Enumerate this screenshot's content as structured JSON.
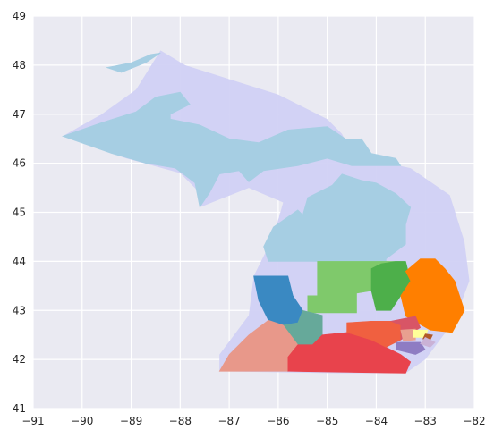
{
  "chart_data": {
    "type": "map",
    "background_color": "#EAEAF2",
    "grid": true,
    "grid_color": "#FFFFFF",
    "xlim": [
      -91,
      -82
    ],
    "ylim": [
      41,
      49
    ],
    "x_ticks": [
      -91,
      -90,
      -89,
      -88,
      -87,
      -86,
      -85,
      -84,
      -83,
      -82
    ],
    "y_ticks": [
      41,
      42,
      43,
      44,
      45,
      46,
      47,
      48,
      49
    ],
    "x_tick_labels": [
      "−91",
      "−90",
      "−89",
      "−88",
      "−87",
      "−86",
      "−85",
      "−84",
      "−83",
      "−82"
    ],
    "y_tick_labels": [
      "41",
      "42",
      "43",
      "44",
      "45",
      "46",
      "47",
      "48",
      "49"
    ],
    "state_outline": {
      "color": "#D1D1F4",
      "polygon": [
        [
          -88.4,
          48.3
        ],
        [
          -87.9,
          48.0
        ],
        [
          -86.0,
          47.4
        ],
        [
          -85.0,
          46.9
        ],
        [
          -84.7,
          46.6
        ],
        [
          -84.6,
          46.4
        ],
        [
          -84.0,
          46.05
        ],
        [
          -83.3,
          45.9
        ],
        [
          -82.5,
          45.35
        ],
        [
          -82.2,
          44.4
        ],
        [
          -82.1,
          43.6
        ],
        [
          -82.4,
          42.8
        ],
        [
          -83.0,
          42.0
        ],
        [
          -83.4,
          41.72
        ],
        [
          -84.8,
          41.72
        ],
        [
          -87.2,
          41.76
        ],
        [
          -87.2,
          42.1
        ],
        [
          -86.6,
          42.9
        ],
        [
          -86.5,
          43.7
        ],
        [
          -86.1,
          44.5
        ],
        [
          -85.9,
          45.2
        ],
        [
          -86.6,
          45.5
        ],
        [
          -87.6,
          45.1
        ],
        [
          -87.6,
          45.4
        ],
        [
          -88.0,
          45.8
        ],
        [
          -89.1,
          46.1
        ],
        [
          -90.4,
          46.55
        ],
        [
          -89.6,
          47.0
        ],
        [
          -88.9,
          47.5
        ],
        [
          -88.4,
          48.3
        ]
      ]
    },
    "regions": [
      {
        "color": "#A6CEE3",
        "polygon": [
          [
            -90.4,
            46.55
          ],
          [
            -89.6,
            46.83
          ],
          [
            -88.9,
            47.05
          ],
          [
            -88.5,
            47.35
          ],
          [
            -88.0,
            47.45
          ],
          [
            -87.8,
            47.2
          ],
          [
            -88.2,
            47.0
          ],
          [
            -88.2,
            46.9
          ],
          [
            -87.6,
            46.78
          ],
          [
            -87.0,
            46.5
          ],
          [
            -86.4,
            46.42
          ],
          [
            -85.8,
            46.68
          ],
          [
            -85.0,
            46.75
          ],
          [
            -84.6,
            46.48
          ],
          [
            -84.3,
            46.5
          ],
          [
            -84.1,
            46.2
          ],
          [
            -83.6,
            46.1
          ],
          [
            -83.5,
            45.95
          ],
          [
            -83.9,
            45.95
          ],
          [
            -84.5,
            45.95
          ],
          [
            -85.0,
            46.1
          ],
          [
            -85.6,
            45.95
          ],
          [
            -86.3,
            45.85
          ],
          [
            -86.6,
            45.62
          ],
          [
            -86.8,
            45.85
          ],
          [
            -87.2,
            45.78
          ],
          [
            -87.4,
            45.4
          ],
          [
            -87.6,
            45.1
          ],
          [
            -87.7,
            45.6
          ],
          [
            -87.9,
            45.75
          ],
          [
            -88.1,
            45.9
          ],
          [
            -88.7,
            46.0
          ],
          [
            -89.4,
            46.2
          ],
          [
            -90.4,
            46.55
          ]
        ]
      },
      {
        "color": "#A6CEE3",
        "polygon": [
          [
            -89.5,
            47.95
          ],
          [
            -89.2,
            47.85
          ],
          [
            -88.7,
            48.05
          ],
          [
            -88.4,
            48.25
          ],
          [
            -88.6,
            48.22
          ],
          [
            -89.0,
            48.05
          ],
          [
            -89.5,
            47.95
          ]
        ]
      },
      {
        "color": "#A6CEE3",
        "polygon": [
          [
            -84.7,
            45.78
          ],
          [
            -84.3,
            45.65
          ],
          [
            -84.0,
            45.6
          ],
          [
            -83.6,
            45.38
          ],
          [
            -83.3,
            45.1
          ],
          [
            -83.4,
            44.75
          ],
          [
            -83.4,
            44.35
          ],
          [
            -83.8,
            44.05
          ],
          [
            -83.8,
            43.95
          ],
          [
            -84.1,
            44.0
          ],
          [
            -86.2,
            44.0
          ],
          [
            -86.3,
            44.3
          ],
          [
            -86.1,
            44.7
          ],
          [
            -85.6,
            45.05
          ],
          [
            -85.5,
            44.95
          ],
          [
            -85.4,
            45.3
          ],
          [
            -84.9,
            45.55
          ],
          [
            -84.7,
            45.78
          ]
        ]
      },
      {
        "color": "#7FC96B",
        "polygon": [
          [
            -85.2,
            44.0
          ],
          [
            -83.6,
            44.0
          ],
          [
            -83.9,
            43.95
          ],
          [
            -84.1,
            43.85
          ],
          [
            -84.1,
            43.4
          ],
          [
            -84.4,
            43.35
          ],
          [
            -84.4,
            42.95
          ],
          [
            -85.4,
            42.95
          ],
          [
            -85.4,
            43.3
          ],
          [
            -85.2,
            43.3
          ],
          [
            -85.2,
            44.0
          ]
        ]
      },
      {
        "color": "#4DAF4A",
        "polygon": [
          [
            -83.6,
            44.0
          ],
          [
            -83.4,
            44.0
          ],
          [
            -83.3,
            43.6
          ],
          [
            -83.5,
            43.3
          ],
          [
            -83.7,
            43.0
          ],
          [
            -84.0,
            43.0
          ],
          [
            -84.1,
            43.4
          ],
          [
            -84.1,
            43.85
          ],
          [
            -83.9,
            43.95
          ],
          [
            -83.6,
            44.0
          ]
        ]
      },
      {
        "color": "#FF7F00",
        "polygon": [
          [
            -82.6,
            43.85
          ],
          [
            -82.4,
            43.6
          ],
          [
            -82.2,
            43.0
          ],
          [
            -82.45,
            42.55
          ],
          [
            -82.9,
            42.6
          ],
          [
            -83.4,
            42.88
          ],
          [
            -83.5,
            43.3
          ],
          [
            -83.3,
            43.6
          ],
          [
            -83.4,
            43.8
          ],
          [
            -83.1,
            44.05
          ],
          [
            -82.8,
            44.05
          ],
          [
            -82.6,
            43.85
          ]
        ]
      },
      {
        "color": "#3A89C2",
        "polygon": [
          [
            -86.5,
            43.7
          ],
          [
            -85.8,
            43.7
          ],
          [
            -85.7,
            43.3
          ],
          [
            -85.5,
            43.0
          ],
          [
            -85.6,
            42.75
          ],
          [
            -85.9,
            42.7
          ],
          [
            -86.2,
            42.8
          ],
          [
            -86.4,
            43.2
          ],
          [
            -86.5,
            43.7
          ]
        ]
      },
      {
        "color": "#66A99A",
        "polygon": [
          [
            -85.5,
            43.0
          ],
          [
            -85.6,
            42.75
          ],
          [
            -85.9,
            42.7
          ],
          [
            -85.6,
            42.3
          ],
          [
            -85.3,
            42.3
          ],
          [
            -85.1,
            42.5
          ],
          [
            -85.1,
            42.9
          ],
          [
            -85.5,
            43.0
          ]
        ]
      },
      {
        "color": "#E8988A",
        "polygon": [
          [
            -87.2,
            41.76
          ],
          [
            -85.8,
            41.76
          ],
          [
            -85.8,
            42.05
          ],
          [
            -85.6,
            42.3
          ],
          [
            -85.9,
            42.7
          ],
          [
            -86.2,
            42.8
          ],
          [
            -86.6,
            42.5
          ],
          [
            -87.0,
            42.1
          ],
          [
            -87.2,
            41.76
          ]
        ]
      },
      {
        "color": "#E8434C",
        "polygon": [
          [
            -85.8,
            41.76
          ],
          [
            -83.4,
            41.72
          ],
          [
            -83.3,
            41.95
          ],
          [
            -83.5,
            42.1
          ],
          [
            -83.8,
            42.25
          ],
          [
            -84.1,
            42.4
          ],
          [
            -84.6,
            42.55
          ],
          [
            -85.1,
            42.5
          ],
          [
            -85.3,
            42.3
          ],
          [
            -85.6,
            42.3
          ],
          [
            -85.8,
            42.05
          ],
          [
            -85.8,
            41.76
          ]
        ]
      },
      {
        "color": "#F06040",
        "polygon": [
          [
            -84.6,
            42.55
          ],
          [
            -84.1,
            42.4
          ],
          [
            -83.8,
            42.25
          ],
          [
            -83.5,
            42.4
          ],
          [
            -83.5,
            42.7
          ],
          [
            -83.7,
            42.78
          ],
          [
            -84.1,
            42.78
          ],
          [
            -84.6,
            42.75
          ],
          [
            -84.6,
            42.55
          ]
        ]
      },
      {
        "color": "#D85566",
        "polygon": [
          [
            -83.7,
            42.78
          ],
          [
            -83.2,
            42.88
          ],
          [
            -83.1,
            42.65
          ],
          [
            -83.5,
            42.4
          ],
          [
            -83.5,
            42.7
          ],
          [
            -83.7,
            42.78
          ]
        ]
      },
      {
        "color": "#E8A090",
        "polygon": [
          [
            -83.5,
            42.6
          ],
          [
            -83.2,
            42.62
          ],
          [
            -83.2,
            42.4
          ],
          [
            -83.45,
            42.38
          ],
          [
            -83.5,
            42.6
          ]
        ]
      },
      {
        "color": "#FFFF99",
        "polygon": [
          [
            -83.25,
            42.6
          ],
          [
            -82.95,
            42.6
          ],
          [
            -83.0,
            42.45
          ],
          [
            -83.25,
            42.45
          ],
          [
            -83.25,
            42.6
          ]
        ]
      },
      {
        "color": "#B15928",
        "polygon": [
          [
            -83.0,
            42.52
          ],
          [
            -82.85,
            42.5
          ],
          [
            -82.9,
            42.4
          ],
          [
            -83.05,
            42.42
          ],
          [
            -83.0,
            42.52
          ]
        ]
      },
      {
        "color": "#8E7CC3",
        "polygon": [
          [
            -83.6,
            42.35
          ],
          [
            -83.1,
            42.35
          ],
          [
            -83.0,
            42.2
          ],
          [
            -83.2,
            42.1
          ],
          [
            -83.6,
            42.2
          ],
          [
            -83.6,
            42.35
          ]
        ]
      },
      {
        "color": "#CAB2D6",
        "polygon": [
          [
            -83.0,
            42.45
          ],
          [
            -82.8,
            42.35
          ],
          [
            -82.9,
            42.25
          ],
          [
            -83.1,
            42.32
          ],
          [
            -83.0,
            42.45
          ]
        ]
      }
    ]
  }
}
